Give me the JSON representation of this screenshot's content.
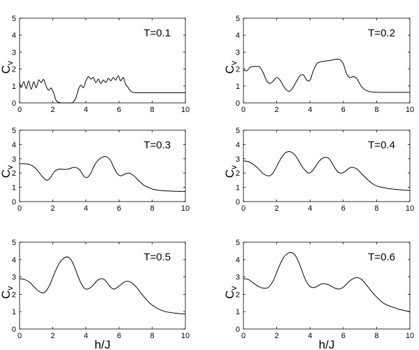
{
  "chart_data": [
    {
      "type": "line",
      "annotation": "T=0.1",
      "ylabel": "C",
      "ylabel_sub": "v",
      "xlabel": "",
      "xlim": [
        0,
        10
      ],
      "ylim": [
        0,
        5
      ],
      "xticks": [
        0,
        2,
        4,
        6,
        8,
        10
      ],
      "yticks": [
        0,
        1,
        2,
        3,
        4,
        5
      ],
      "x": [
        0,
        0.1,
        0.25,
        0.4,
        0.55,
        0.7,
        0.85,
        1.0,
        1.15,
        1.3,
        1.45,
        1.6,
        1.75,
        1.9,
        2.05,
        2.2,
        2.4,
        2.6,
        2.8,
        3.0,
        3.2,
        3.4,
        3.55,
        3.7,
        3.85,
        4.0,
        4.15,
        4.3,
        4.45,
        4.6,
        4.75,
        4.9,
        5.05,
        5.2,
        5.35,
        5.5,
        5.65,
        5.8,
        5.95,
        6.1,
        6.25,
        6.4,
        6.55,
        6.7,
        6.85,
        7.0,
        7.5,
        8.0,
        9.0,
        10.0
      ],
      "y": [
        1.2,
        0.9,
        1.25,
        0.85,
        1.3,
        0.8,
        1.25,
        0.9,
        1.35,
        1.2,
        1.38,
        1.0,
        0.75,
        0.88,
        0.6,
        0.15,
        0.02,
        0.0,
        0.0,
        0.0,
        0.02,
        0.3,
        0.8,
        1.05,
        0.9,
        1.3,
        1.55,
        1.4,
        1.5,
        1.2,
        1.4,
        1.15,
        1.35,
        1.2,
        1.45,
        1.3,
        1.5,
        1.35,
        1.6,
        1.3,
        1.5,
        1.1,
        0.9,
        0.7,
        0.62,
        0.6,
        0.6,
        0.6,
        0.6,
        0.6
      ]
    },
    {
      "type": "line",
      "annotation": "T=0.2",
      "ylabel": "C",
      "ylabel_sub": "v",
      "xlabel": "",
      "xlim": [
        0,
        10
      ],
      "ylim": [
        0,
        5
      ],
      "xticks": [
        0,
        2,
        4,
        6,
        8,
        10
      ],
      "yticks": [
        0,
        1,
        2,
        3,
        4,
        5
      ],
      "x": [
        0,
        0.2,
        0.4,
        0.6,
        0.8,
        1.0,
        1.2,
        1.4,
        1.6,
        1.8,
        2.0,
        2.2,
        2.4,
        2.6,
        2.8,
        3.0,
        3.2,
        3.4,
        3.6,
        3.8,
        4.0,
        4.2,
        4.4,
        4.6,
        4.8,
        5.0,
        5.2,
        5.4,
        5.6,
        5.8,
        6.0,
        6.2,
        6.4,
        6.6,
        6.8,
        7.0,
        7.2,
        7.4,
        7.6,
        7.8,
        8.0,
        8.5,
        9.0,
        10.0
      ],
      "y": [
        1.95,
        1.9,
        2.1,
        2.15,
        2.15,
        2.1,
        1.75,
        1.3,
        1.15,
        1.3,
        1.5,
        1.35,
        1.0,
        0.75,
        0.7,
        0.95,
        1.3,
        1.6,
        1.65,
        1.35,
        1.35,
        1.9,
        2.3,
        2.42,
        2.45,
        2.48,
        2.5,
        2.55,
        2.58,
        2.55,
        2.3,
        1.7,
        1.5,
        1.55,
        1.45,
        1.1,
        0.85,
        0.72,
        0.66,
        0.64,
        0.63,
        0.62,
        0.62,
        0.62
      ]
    },
    {
      "type": "line",
      "annotation": "T=0.3",
      "ylabel": "C",
      "ylabel_sub": "v",
      "xlabel": "",
      "xlim": [
        0,
        10
      ],
      "ylim": [
        0,
        5
      ],
      "xticks": [
        0,
        2,
        4,
        6,
        8,
        10
      ],
      "yticks": [
        0,
        1,
        2,
        3,
        4,
        5
      ],
      "x": [
        0,
        0.3,
        0.6,
        0.9,
        1.2,
        1.5,
        1.7,
        1.9,
        2.1,
        2.3,
        2.5,
        2.7,
        3.0,
        3.3,
        3.6,
        3.9,
        4.1,
        4.3,
        4.5,
        4.7,
        4.9,
        5.1,
        5.3,
        5.5,
        5.7,
        5.9,
        6.1,
        6.3,
        6.6,
        6.9,
        7.2,
        7.5,
        7.8,
        8.1,
        8.5,
        9.0,
        9.5,
        10.0
      ],
      "y": [
        2.65,
        2.65,
        2.6,
        2.4,
        2.0,
        1.6,
        1.5,
        1.75,
        2.1,
        2.25,
        2.28,
        2.25,
        2.3,
        2.4,
        2.25,
        1.75,
        1.7,
        2.0,
        2.5,
        2.85,
        3.05,
        3.15,
        3.1,
        2.85,
        2.35,
        1.95,
        1.8,
        1.9,
        2.0,
        1.8,
        1.45,
        1.15,
        0.98,
        0.85,
        0.78,
        0.74,
        0.72,
        0.72
      ]
    },
    {
      "type": "line",
      "annotation": "T=0.4",
      "ylabel": "C",
      "ylabel_sub": "v",
      "xlabel": "",
      "xlim": [
        0,
        10
      ],
      "ylim": [
        0,
        5
      ],
      "xticks": [
        0,
        2,
        4,
        6,
        8,
        10
      ],
      "yticks": [
        0,
        1,
        2,
        3,
        4,
        5
      ],
      "x": [
        0,
        0.3,
        0.6,
        0.9,
        1.2,
        1.5,
        1.7,
        1.9,
        2.1,
        2.3,
        2.5,
        2.7,
        2.9,
        3.1,
        3.3,
        3.5,
        3.7,
        3.9,
        4.1,
        4.3,
        4.5,
        4.7,
        4.9,
        5.1,
        5.3,
        5.5,
        5.7,
        5.9,
        6.1,
        6.3,
        6.5,
        6.7,
        6.9,
        7.1,
        7.4,
        7.7,
        8.0,
        8.4,
        8.8,
        9.2,
        9.6,
        10.0
      ],
      "y": [
        2.85,
        2.8,
        2.6,
        2.3,
        1.95,
        1.8,
        1.9,
        2.25,
        2.7,
        3.1,
        3.4,
        3.5,
        3.45,
        3.25,
        2.9,
        2.5,
        2.2,
        2.0,
        2.1,
        2.4,
        2.75,
        3.0,
        3.1,
        3.05,
        2.75,
        2.35,
        2.05,
        2.0,
        2.1,
        2.3,
        2.4,
        2.35,
        2.2,
        1.95,
        1.6,
        1.3,
        1.1,
        0.98,
        0.9,
        0.85,
        0.81,
        0.78
      ]
    },
    {
      "type": "line",
      "annotation": "T=0.5",
      "ylabel": "C",
      "ylabel_sub": "v",
      "xlabel": "h/J",
      "xlim": [
        0,
        10
      ],
      "ylim": [
        0,
        5
      ],
      "xticks": [
        0,
        2,
        4,
        6,
        8,
        10
      ],
      "yticks": [
        0,
        1,
        2,
        3,
        4,
        5
      ],
      "x": [
        0,
        0.3,
        0.6,
        0.9,
        1.2,
        1.5,
        1.8,
        2.1,
        2.4,
        2.7,
        2.9,
        3.1,
        3.3,
        3.5,
        3.7,
        3.9,
        4.1,
        4.3,
        4.5,
        4.7,
        4.9,
        5.1,
        5.3,
        5.5,
        5.7,
        5.9,
        6.1,
        6.3,
        6.5,
        6.7,
        6.9,
        7.1,
        7.3,
        7.6,
        7.9,
        8.2,
        8.5,
        8.8,
        9.1,
        9.4,
        9.7,
        10.0
      ],
      "y": [
        2.9,
        2.85,
        2.7,
        2.4,
        2.15,
        2.1,
        2.5,
        3.2,
        3.8,
        4.1,
        4.15,
        4.0,
        3.6,
        3.1,
        2.65,
        2.35,
        2.3,
        2.4,
        2.6,
        2.8,
        2.9,
        2.85,
        2.65,
        2.4,
        2.3,
        2.4,
        2.55,
        2.7,
        2.75,
        2.7,
        2.55,
        2.35,
        2.1,
        1.75,
        1.45,
        1.25,
        1.1,
        1.0,
        0.95,
        0.91,
        0.88,
        0.86
      ]
    },
    {
      "type": "line",
      "annotation": "T=0.6",
      "ylabel": "C",
      "ylabel_sub": "v",
      "xlabel": "h/J",
      "xlim": [
        0,
        10
      ],
      "ylim": [
        0,
        5
      ],
      "xticks": [
        0,
        2,
        4,
        6,
        8,
        10
      ],
      "yticks": [
        0,
        1,
        2,
        3,
        4,
        5
      ],
      "x": [
        0,
        0.3,
        0.6,
        0.9,
        1.2,
        1.5,
        1.8,
        2.1,
        2.4,
        2.7,
        2.9,
        3.1,
        3.3,
        3.5,
        3.7,
        3.9,
        4.1,
        4.3,
        4.5,
        4.7,
        4.9,
        5.1,
        5.3,
        5.5,
        5.7,
        5.9,
        6.1,
        6.3,
        6.5,
        6.7,
        6.9,
        7.1,
        7.3,
        7.5,
        7.8,
        8.1,
        8.4,
        8.7,
        9.0,
        9.3,
        9.6,
        10.0
      ],
      "y": [
        2.9,
        2.85,
        2.65,
        2.45,
        2.35,
        2.4,
        2.8,
        3.5,
        4.1,
        4.38,
        4.4,
        4.25,
        3.9,
        3.4,
        2.9,
        2.55,
        2.4,
        2.4,
        2.5,
        2.6,
        2.6,
        2.55,
        2.45,
        2.35,
        2.3,
        2.35,
        2.5,
        2.7,
        2.85,
        2.95,
        2.95,
        2.85,
        2.65,
        2.4,
        2.05,
        1.75,
        1.5,
        1.35,
        1.25,
        1.15,
        1.08,
        1.0
      ]
    }
  ]
}
